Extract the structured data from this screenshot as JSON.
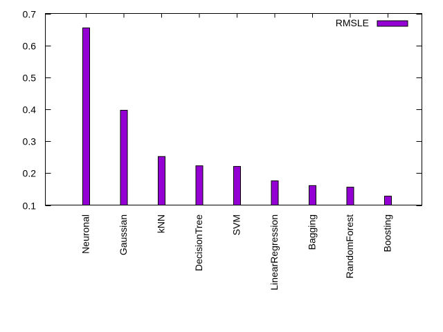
{
  "chart_data": {
    "type": "bar",
    "categories": [
      "Neuronal",
      "Gaussian",
      "kNN",
      "DecisionTree",
      "SVM",
      "LinearRegression",
      "Bagging",
      "RandomForest",
      "Boosting"
    ],
    "series": [
      {
        "name": "RMSLE",
        "values": [
          0.655,
          0.397,
          0.252,
          0.223,
          0.221,
          0.176,
          0.161,
          0.156,
          0.128
        ],
        "color": "#9400d3"
      }
    ],
    "title": "",
    "xlabel": "",
    "ylabel": "",
    "ylim": [
      0.1,
      0.7
    ],
    "yticks": [
      0.1,
      0.2,
      0.3,
      0.4,
      0.5,
      0.6,
      0.7
    ],
    "ytick_labels": [
      "0.1",
      "0.2",
      "0.3",
      "0.4",
      "0.5",
      "0.6",
      "0.7"
    ],
    "grid": false,
    "legend_position": "top-right"
  }
}
